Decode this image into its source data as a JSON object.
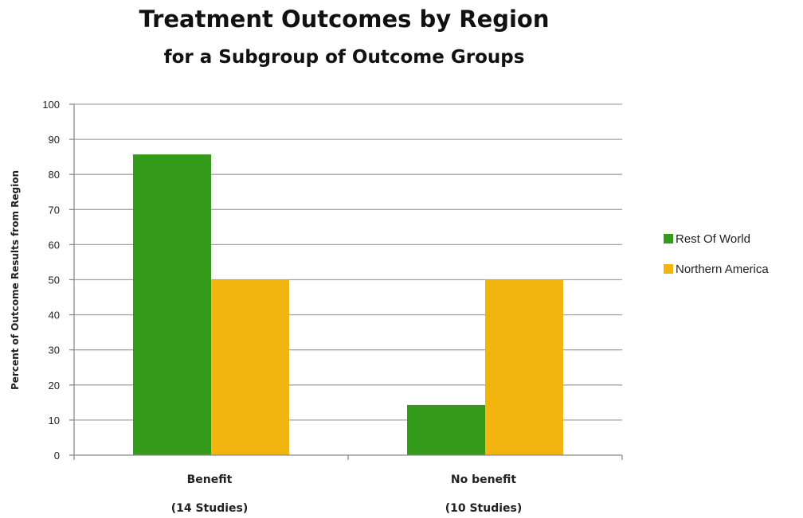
{
  "chart_data": {
    "type": "bar",
    "title": "Treatment Outcomes by Region",
    "subtitle": "for a Subgroup  of  Outcome Groups",
    "xlabel": "",
    "ylabel": "Percent of Outcome Results from Region",
    "ylim": [
      0,
      100
    ],
    "yticks": [
      0,
      10,
      20,
      30,
      40,
      50,
      60,
      70,
      80,
      90,
      100
    ],
    "grid": true,
    "legend_position": "right",
    "categories": [
      {
        "label": "Benefit",
        "sublabel": "(14 Studies)"
      },
      {
        "label": "No benefit",
        "sublabel": "(10 Studies)"
      }
    ],
    "series": [
      {
        "name": "Rest Of World",
        "color": "#339a1a",
        "values": [
          85.7,
          14.3
        ]
      },
      {
        "name": "Northern America",
        "color": "#f2b40f",
        "values": [
          50,
          50
        ]
      }
    ]
  }
}
